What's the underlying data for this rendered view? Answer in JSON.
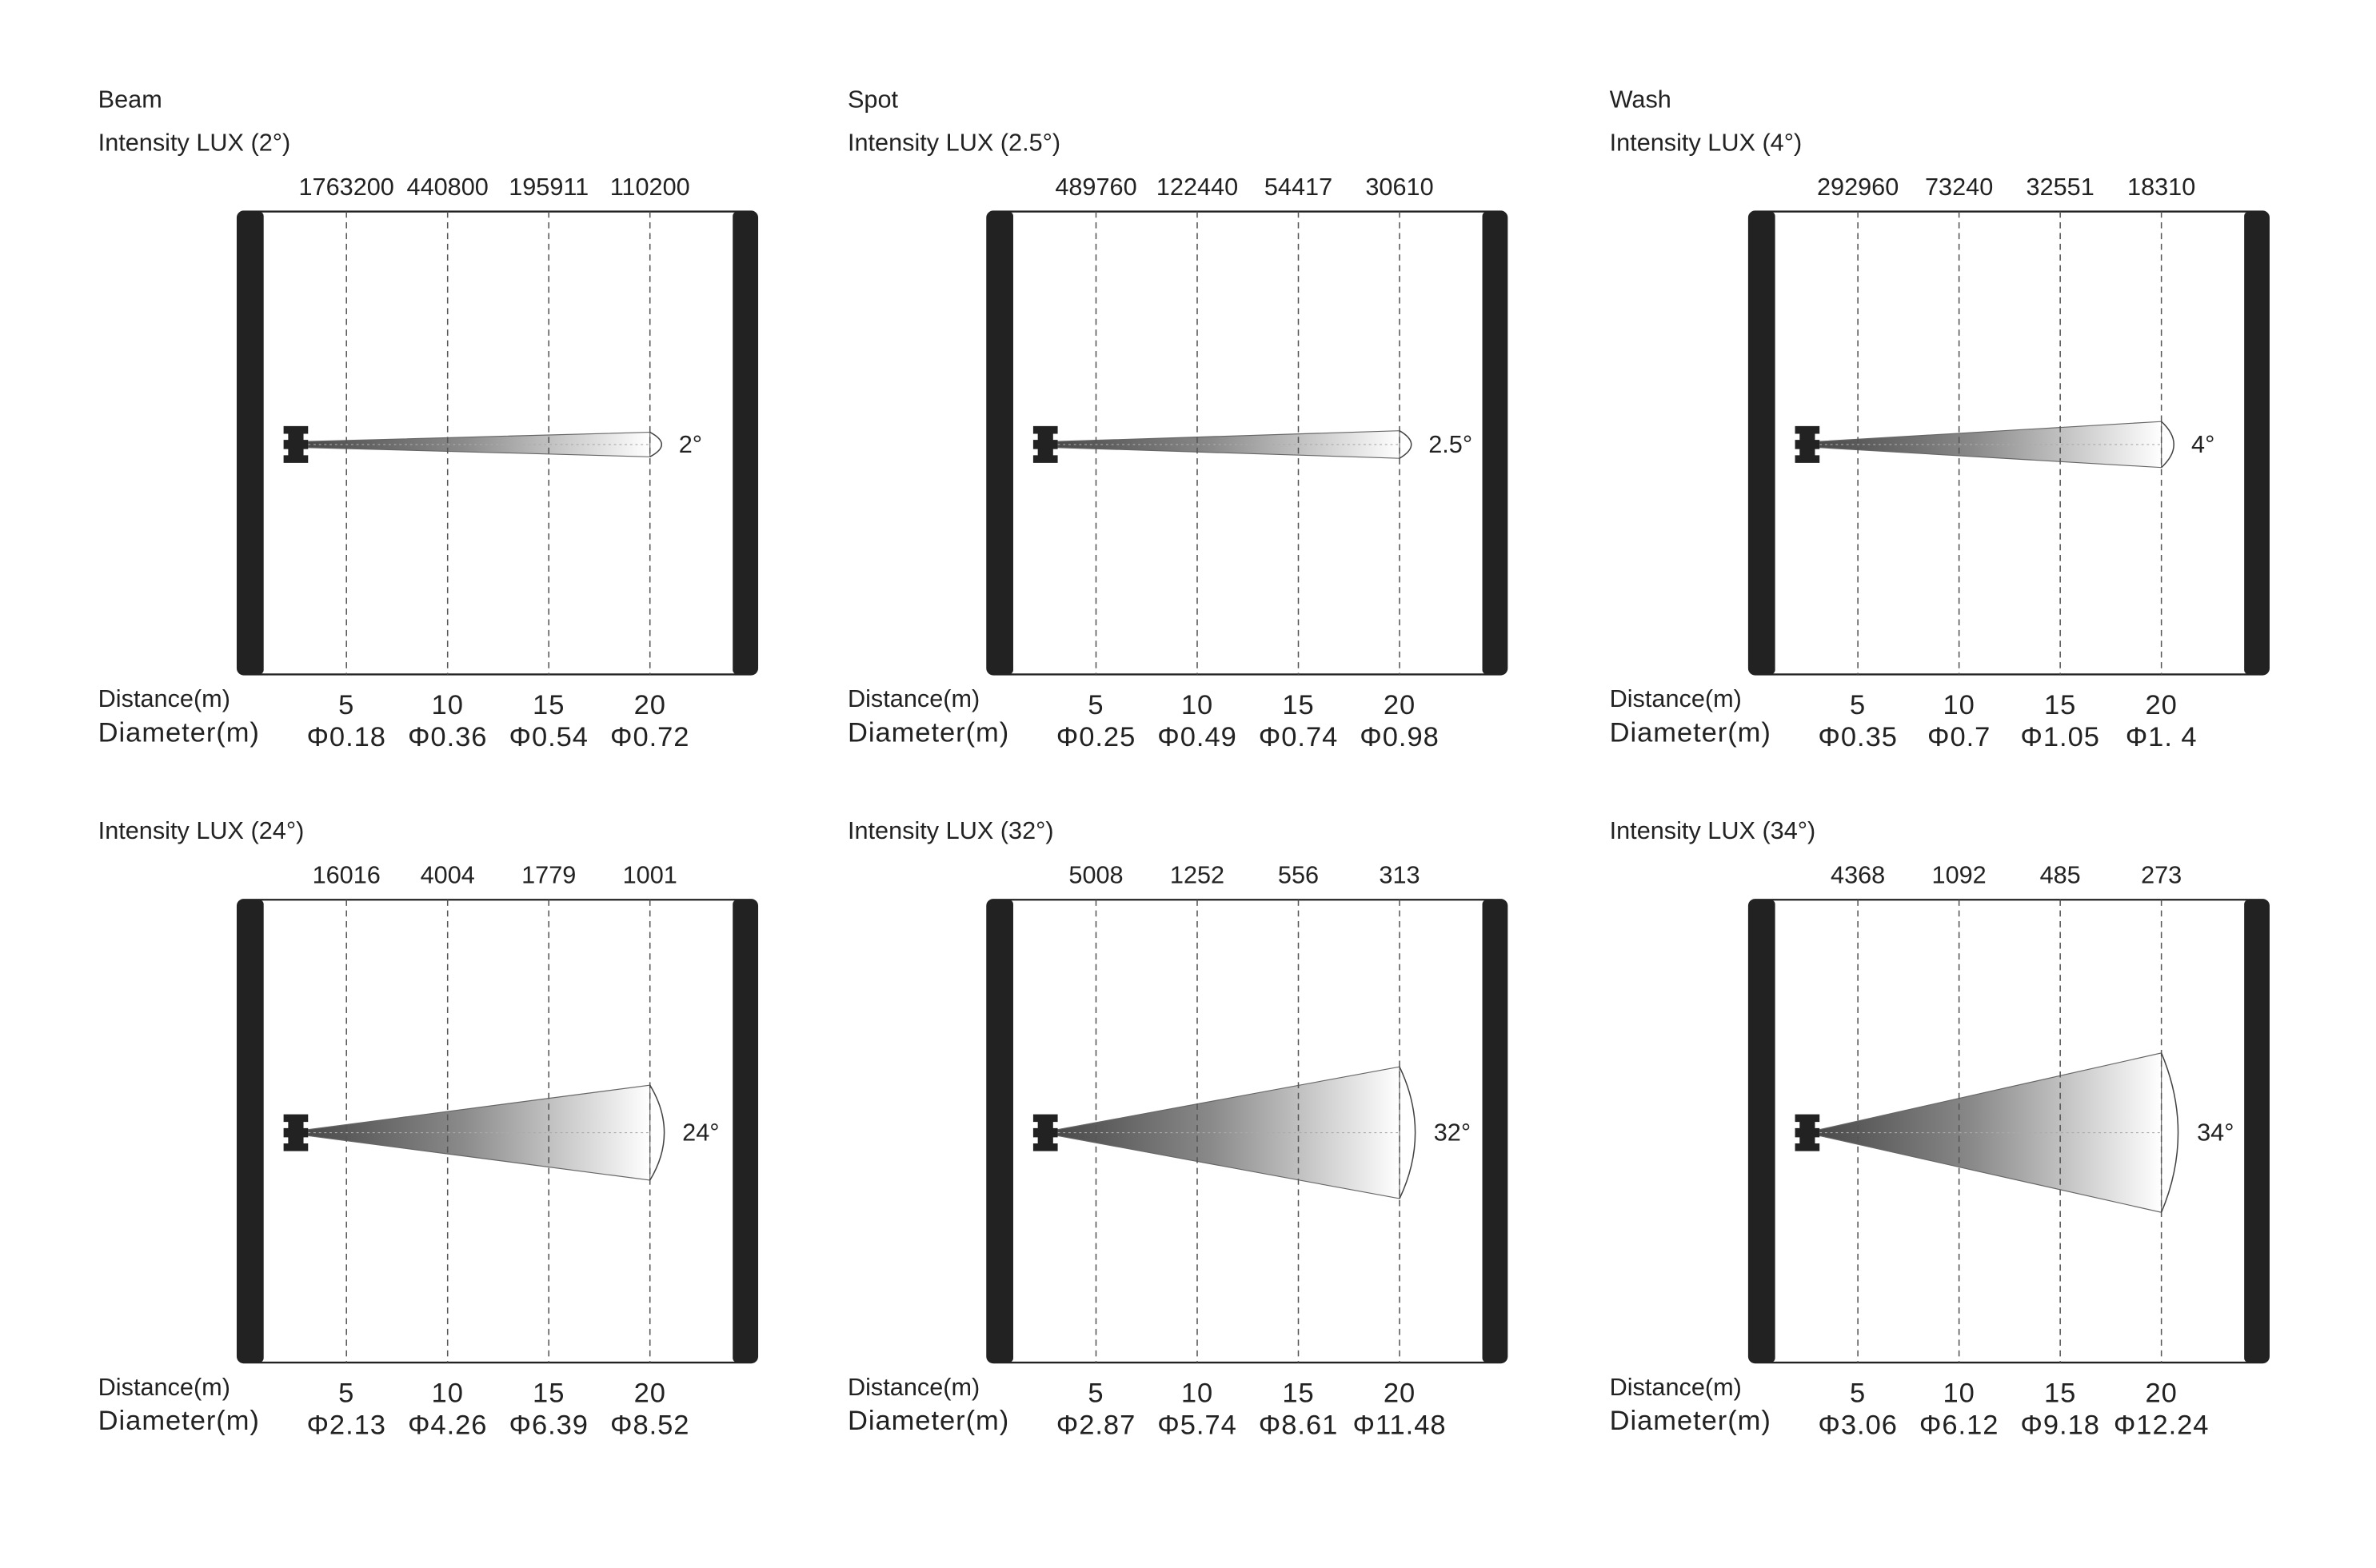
{
  "panels": [
    {
      "title": "Beam",
      "intensity_label": "Intensity LUX (2°)",
      "lux": [
        1763200,
        440800,
        195911,
        110200
      ],
      "angle_label": "2°",
      "distance_label": "Distance(m)",
      "distances": [
        5,
        10,
        15,
        20
      ],
      "diameter_label": "Diameter(m)",
      "diameters": [
        "Φ0.18",
        "Φ0.36",
        "Φ0.54",
        "Φ0.72"
      ]
    },
    {
      "title": "Spot",
      "intensity_label": "Intensity LUX (2.5°)",
      "lux": [
        489760,
        122440,
        54417,
        30610
      ],
      "angle_label": "2.5°",
      "distance_label": "Distance(m)",
      "distances": [
        5,
        10,
        15,
        20
      ],
      "diameter_label": "Diameter(m)",
      "diameters": [
        "Φ0.25",
        "Φ0.49",
        "Φ0.74",
        "Φ0.98"
      ]
    },
    {
      "title": "Wash",
      "intensity_label": "Intensity LUX (4°)",
      "lux": [
        292960,
        73240,
        32551,
        18310
      ],
      "angle_label": "4°",
      "distance_label": "Distance(m)",
      "distances": [
        5,
        10,
        15,
        20
      ],
      "diameter_label": "Diameter(m)",
      "diameters": [
        "Φ0.35",
        "Φ0.7",
        "Φ1.05",
        "Φ1. 4"
      ]
    },
    {
      "intensity_label": "Intensity LUX (24°)",
      "lux": [
        16016,
        4004,
        1779,
        1001
      ],
      "angle_label": "24°",
      "distance_label": "Distance(m)",
      "distances": [
        5,
        10,
        15,
        20
      ],
      "diameter_label": "Diameter(m)",
      "diameters": [
        "Φ2.13",
        "Φ4.26",
        "Φ6.39",
        "Φ8.52"
      ]
    },
    {
      "intensity_label": "Intensity LUX (32°)",
      "lux": [
        5008,
        1252,
        556,
        313
      ],
      "angle_label": "32°",
      "distance_label": "Distance(m)",
      "distances": [
        5,
        10,
        15,
        20
      ],
      "diameter_label": "Diameter(m)",
      "diameters": [
        "Φ2.87",
        "Φ5.74",
        "Φ8.61",
        "Φ11.48"
      ]
    },
    {
      "intensity_label": "Intensity LUX (34°)",
      "lux": [
        4368,
        1092,
        485,
        273
      ],
      "angle_label": "34°",
      "distance_label": "Distance(m)",
      "distances": [
        5,
        10,
        15,
        20
      ],
      "diameter_label": "Diameter(m)",
      "diameters": [
        "Φ3.06",
        "Φ6.12",
        "Φ9.18",
        "Φ12.24"
      ]
    }
  ]
}
